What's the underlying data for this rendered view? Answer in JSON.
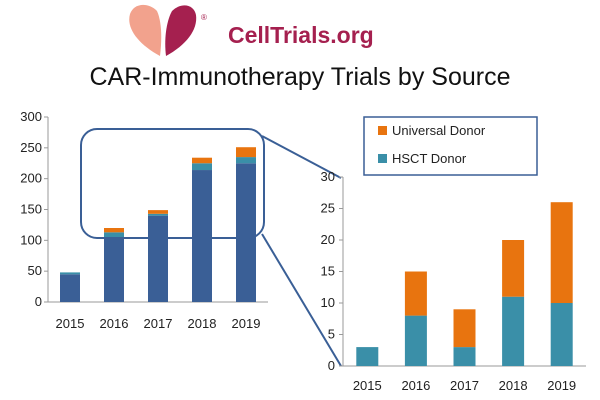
{
  "header": {
    "brand": "CellTrials.org",
    "registered_mark": "®",
    "title": "CAR-Immunotherapy Trials by Source",
    "logo_colors": {
      "left": "#f2a28d",
      "right": "#a5204f"
    }
  },
  "colors": {
    "main_series": "#3a5f96",
    "hsct": "#3a8fa8",
    "universal": "#e8740f",
    "callout": "#3a5f96"
  },
  "chart_data": [
    {
      "type": "bar",
      "stacked": true,
      "categories": [
        "2015",
        "2016",
        "2017",
        "2018",
        "2019"
      ],
      "series": [
        {
          "values": [
            45,
            105,
            140,
            214,
            225
          ],
          "color": "#3a5f96"
        },
        {
          "values": [
            3,
            8,
            3,
            11,
            10
          ],
          "color": "#3a8fa8"
        },
        {
          "values": [
            0,
            7,
            6,
            9,
            16
          ],
          "color": "#e8740f"
        }
      ],
      "ylim": [
        0,
        300
      ],
      "yticks": [
        "0",
        "50",
        "100",
        "150",
        "200",
        "250",
        "300"
      ],
      "grid": false,
      "legend": "none"
    },
    {
      "type": "bar",
      "stacked": true,
      "categories": [
        "2015",
        "2016",
        "2017",
        "2018",
        "2019"
      ],
      "series": [
        {
          "name": "HSCT Donor",
          "values": [
            3,
            8,
            3,
            11,
            10
          ],
          "color": "#3a8fa8"
        },
        {
          "name": "Universal Donor",
          "values": [
            0,
            7,
            6,
            9,
            16
          ],
          "color": "#e8740f"
        }
      ],
      "ylim": [
        0,
        30
      ],
      "yticks": [
        "0",
        "5",
        "10",
        "15",
        "20",
        "25",
        "30"
      ],
      "grid": false,
      "legend": "top"
    }
  ],
  "legend": {
    "items": [
      {
        "label": "Universal Donor",
        "color": "#e8740f"
      },
      {
        "label": "HSCT Donor",
        "color": "#3a8fa8"
      }
    ]
  }
}
